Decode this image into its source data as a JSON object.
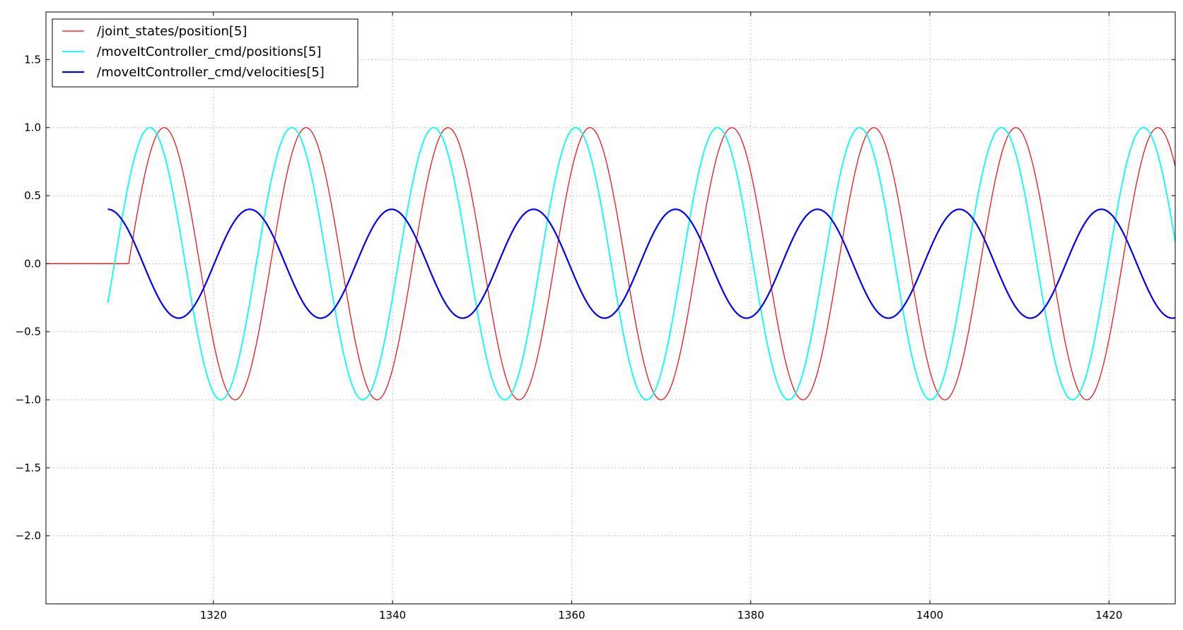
{
  "chart_data": {
    "type": "line",
    "title": "",
    "xlabel": "",
    "ylabel": "",
    "xlim": [
      1301.3,
      1427.4
    ],
    "ylim": [
      -2.5,
      1.85
    ],
    "xticks": [
      1320,
      1340,
      1360,
      1380,
      1400,
      1420
    ],
    "yticks": [
      1.5,
      1.0,
      0.5,
      0.0,
      -0.5,
      -1.0,
      -1.5,
      -2.0
    ],
    "xtick_labels": [
      "1320",
      "1340",
      "1360",
      "1380",
      "1400",
      "1420"
    ],
    "ytick_labels": [
      "1.5",
      "1.0",
      "0.5",
      "0.0",
      "−0.5",
      "−1.0",
      "−1.5",
      "−2.0"
    ],
    "grid": true,
    "legend_position": "top-left",
    "series": [
      {
        "name": "/joint_states/position[5]",
        "color": "#ff0000",
        "kind": "delayed_sine",
        "start_x": 1301.3,
        "flat_until_x": 1310.1,
        "flat_value": 0.0,
        "amplitude": 1.0,
        "period": 15.85,
        "peak_x": 1314.5,
        "peaks": [
          [
            1314.5,
            1.0
          ],
          [
            1330.3,
            1.0
          ],
          [
            1346.1,
            1.0
          ],
          [
            1361.9,
            1.0
          ],
          [
            1377.8,
            1.0
          ],
          [
            1393.6,
            1.0
          ],
          [
            1409.5,
            1.0
          ],
          [
            1425.3,
            1.0
          ]
        ],
        "troughs": [
          [
            1322.4,
            -1.0
          ],
          [
            1338.2,
            -1.0
          ],
          [
            1354.1,
            -1.0
          ],
          [
            1369.9,
            -1.0
          ],
          [
            1385.8,
            -1.0
          ],
          [
            1401.6,
            -1.0
          ],
          [
            1417.4,
            -1.0
          ]
        ]
      },
      {
        "name": "/moveItController_cmd/positions[5]",
        "color": "#00ffff",
        "kind": "sine",
        "start_x": 1308.2,
        "start_value": 0.0,
        "amplitude": 1.0,
        "period": 15.85,
        "peak_x": 1312.9,
        "peaks": [
          [
            1312.9,
            1.0
          ],
          [
            1328.8,
            1.0
          ],
          [
            1344.6,
            1.0
          ],
          [
            1360.5,
            1.0
          ],
          [
            1376.3,
            1.0
          ],
          [
            1392.2,
            1.0
          ],
          [
            1408.0,
            1.0
          ],
          [
            1423.9,
            1.0
          ]
        ],
        "troughs": [
          [
            1320.9,
            -1.0
          ],
          [
            1336.7,
            -1.0
          ],
          [
            1352.6,
            -1.0
          ],
          [
            1368.4,
            -1.0
          ],
          [
            1384.3,
            -1.0
          ],
          [
            1400.1,
            -1.0
          ],
          [
            1416.0,
            -1.0
          ]
        ]
      },
      {
        "name": "/moveItController_cmd/velocities[5]",
        "color": "#0000ff",
        "kind": "sine",
        "start_x": 1308.2,
        "start_value": 0.4,
        "amplitude": 0.4,
        "period": 15.85,
        "peak_x": 1308.2,
        "peaks": [
          [
            1308.2,
            0.4
          ],
          [
            1324.1,
            0.4
          ],
          [
            1339.9,
            0.4
          ],
          [
            1355.8,
            0.4
          ],
          [
            1371.6,
            0.4
          ],
          [
            1387.5,
            0.4
          ],
          [
            1403.3,
            0.4
          ],
          [
            1419.2,
            0.4
          ]
        ],
        "troughs": [
          [
            1316.1,
            -0.4
          ],
          [
            1332.0,
            -0.4
          ],
          [
            1347.8,
            -0.4
          ],
          [
            1363.7,
            -0.4
          ],
          [
            1379.5,
            -0.4
          ],
          [
            1395.4,
            -0.4
          ],
          [
            1411.2,
            -0.4
          ],
          [
            1427.1,
            -0.4
          ]
        ]
      }
    ]
  }
}
